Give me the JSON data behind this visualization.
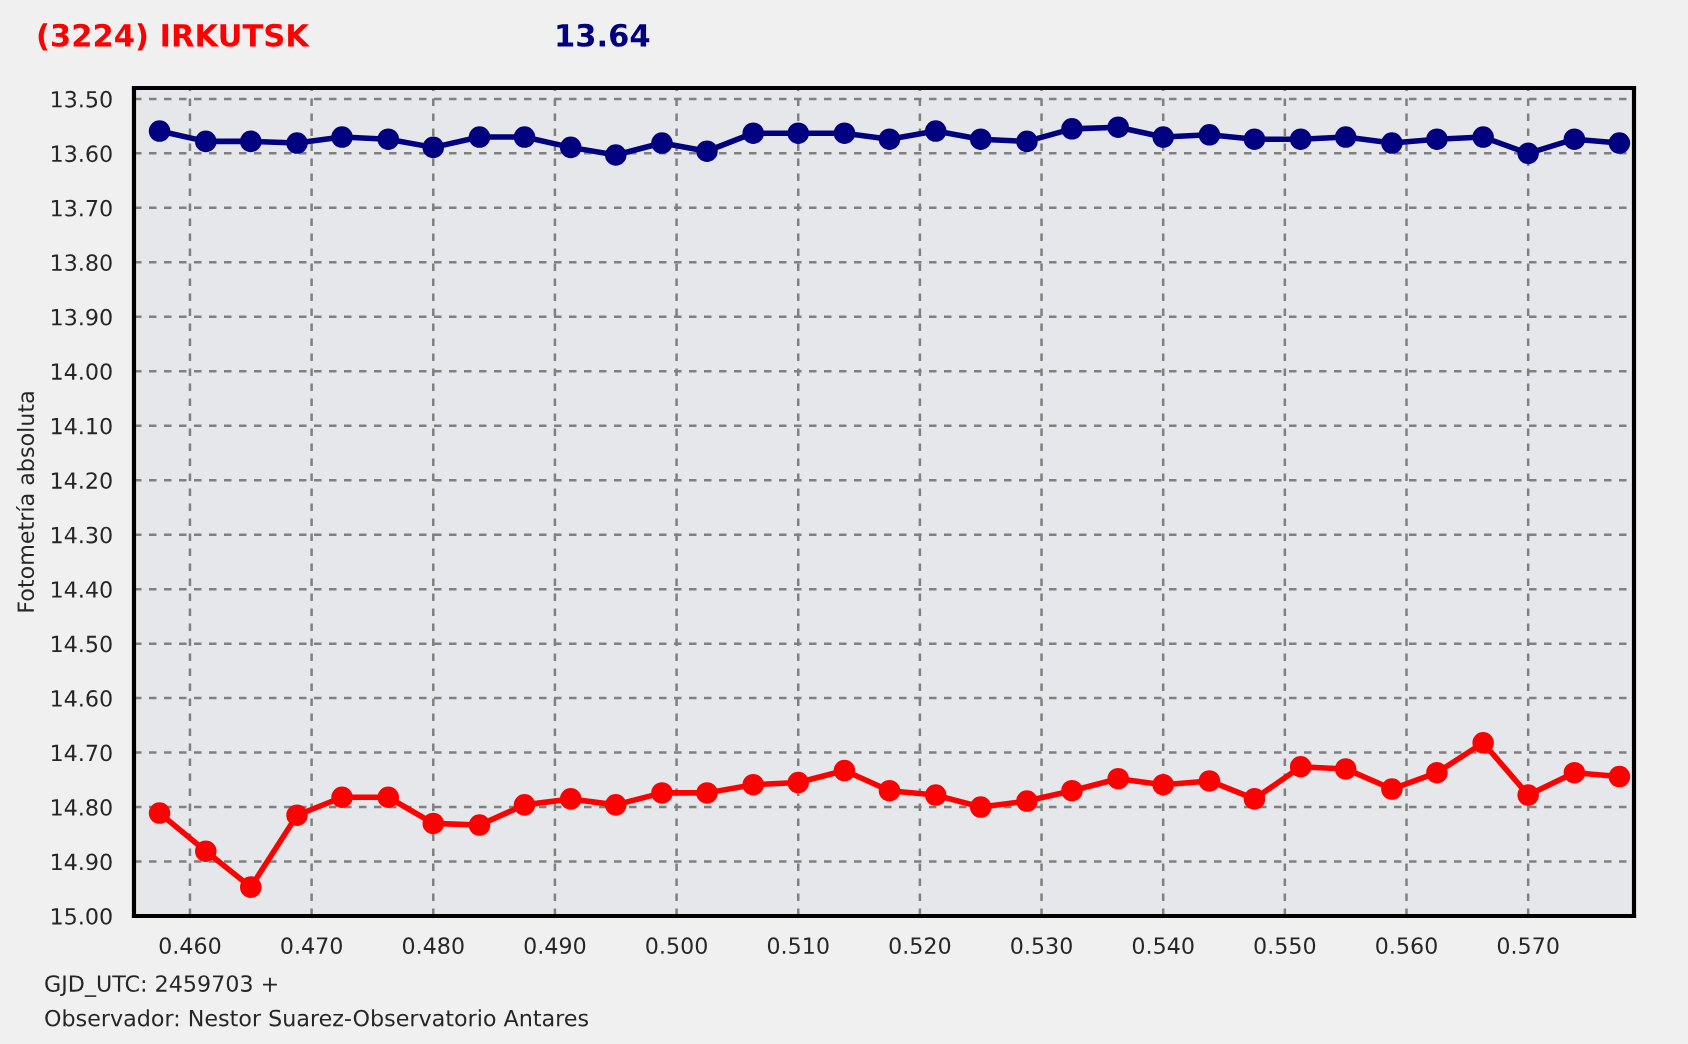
{
  "chart_data": {
    "type": "line",
    "title": "(3224) IRKUTSK",
    "subtitle": "13.64",
    "ylabel": "Fotometría absoluta",
    "annotations": [
      "GJD_UTC: 2459703 +",
      "Observador: Nestor Suarez-Observatorio Antares"
    ],
    "x": [
      0.4575,
      0.4613,
      0.465,
      0.4688,
      0.4725,
      0.4763,
      0.48,
      0.4838,
      0.4875,
      0.4913,
      0.495,
      0.4988,
      0.5025,
      0.5063,
      0.51,
      0.5138,
      0.5175,
      0.5213,
      0.525,
      0.5288,
      0.5325,
      0.5363,
      0.54,
      0.5438,
      0.5475,
      0.5513,
      0.555,
      0.5588,
      0.5625,
      0.5663,
      0.57,
      0.5738,
      0.5775
    ],
    "series": [
      {
        "color": "#000080",
        "values": [
          13.559,
          13.578,
          13.578,
          13.581,
          13.57,
          13.574,
          13.589,
          13.57,
          13.57,
          13.589,
          13.603,
          13.581,
          13.596,
          13.563,
          13.563,
          13.563,
          13.574,
          13.559,
          13.574,
          13.578,
          13.555,
          13.552,
          13.57,
          13.566,
          13.574,
          13.574,
          13.57,
          13.581,
          13.574,
          13.57,
          13.6,
          13.574,
          13.581
        ]
      },
      {
        "color": "#ff0000",
        "values": [
          14.811,
          14.881,
          14.947,
          14.815,
          14.782,
          14.782,
          14.83,
          14.833,
          14.796,
          14.785,
          14.796,
          14.774,
          14.774,
          14.759,
          14.755,
          14.733,
          14.77,
          14.778,
          14.8,
          14.789,
          14.77,
          14.748,
          14.759,
          14.752,
          14.785,
          14.726,
          14.73,
          14.767,
          14.737,
          14.682,
          14.778,
          14.737,
          14.744
        ]
      }
    ],
    "xlim": [
      0.4554,
      0.5787
    ],
    "xticks": [
      {
        "value": 0.46,
        "label": "0.460"
      },
      {
        "value": 0.47,
        "label": "0.470"
      },
      {
        "value": 0.48,
        "label": "0.480"
      },
      {
        "value": 0.49,
        "label": "0.490"
      },
      {
        "value": 0.5,
        "label": "0.500"
      },
      {
        "value": 0.51,
        "label": "0.510"
      },
      {
        "value": 0.52,
        "label": "0.520"
      },
      {
        "value": 0.53,
        "label": "0.530"
      },
      {
        "value": 0.54,
        "label": "0.540"
      },
      {
        "value": 0.55,
        "label": "0.550"
      },
      {
        "value": 0.56,
        "label": "0.560"
      },
      {
        "value": 0.57,
        "label": "0.570"
      }
    ],
    "ylim": [
      15.0,
      13.48
    ],
    "yticks": [
      {
        "value": 13.5,
        "label": "13.50"
      },
      {
        "value": 13.6,
        "label": "13.60"
      },
      {
        "value": 13.7,
        "label": "13.70"
      },
      {
        "value": 13.8,
        "label": "13.80"
      },
      {
        "value": 13.9,
        "label": "13.90"
      },
      {
        "value": 14.0,
        "label": "14.00"
      },
      {
        "value": 14.1,
        "label": "14.10"
      },
      {
        "value": 14.2,
        "label": "14.20"
      },
      {
        "value": 14.3,
        "label": "14.30"
      },
      {
        "value": 14.4,
        "label": "14.40"
      },
      {
        "value": 14.5,
        "label": "14.50"
      },
      {
        "value": 14.6,
        "label": "14.60"
      },
      {
        "value": 14.7,
        "label": "14.70"
      },
      {
        "value": 14.8,
        "label": "14.80"
      },
      {
        "value": 14.9,
        "label": "14.90"
      },
      {
        "value": 15.0,
        "label": "15.00"
      }
    ],
    "grid": true,
    "legend": false,
    "marker": "circle",
    "line_style": "solid"
  }
}
